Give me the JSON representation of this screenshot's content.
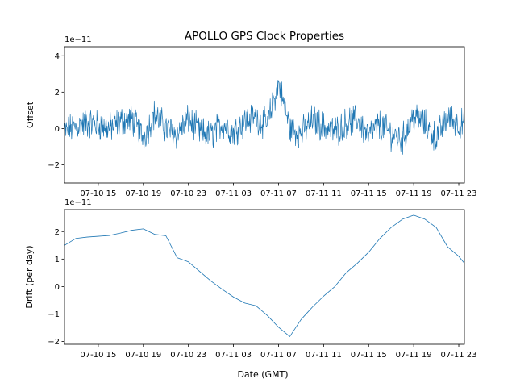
{
  "chart_data": [
    {
      "type": "line",
      "title": "APOLLO GPS Clock Properties",
      "xlabel": "",
      "ylabel": "Offset",
      "scale_label": "1e−11",
      "color": "#1f77b4",
      "ylim": [
        -3.0,
        4.5
      ],
      "yticks": [
        -2,
        0,
        2,
        4
      ],
      "xticks": [
        "07-10 15",
        "07-10 19",
        "07-10 23",
        "07-11 03",
        "07-11 07",
        "07-11 11",
        "07-11 15",
        "07-11 19",
        "07-11 23"
      ],
      "grid": false,
      "series": [
        {
          "x": [
            "07-10 12",
            "07-10 13",
            "07-10 14",
            "07-10 15",
            "07-10 16",
            "07-10 17",
            "07-10 18",
            "07-10 19",
            "07-10 20",
            "07-10 21",
            "07-10 22",
            "07-10 23",
            "07-11 00",
            "07-11 01",
            "07-11 02",
            "07-11 03",
            "07-11 04",
            "07-11 05",
            "07-11 06",
            "07-11 07",
            "07-11 08",
            "07-11 09",
            "07-11 10",
            "07-11 11",
            "07-11 12",
            "07-11 13",
            "07-11 14",
            "07-11 15",
            "07-11 16",
            "07-11 17",
            "07-11 18",
            "07-11 19",
            "07-11 20",
            "07-11 21",
            "07-11 22",
            "07-11 23",
            "07-11 23:30"
          ],
          "values": [
            -0.2,
            0.1,
            0.3,
            0.2,
            0.0,
            0.4,
            0.5,
            -0.5,
            0.8,
            0.0,
            -0.3,
            0.5,
            -0.2,
            -0.4,
            0.3,
            -0.2,
            0.4,
            0.6,
            0.2,
            2.5,
            0.0,
            -0.3,
            0.5,
            0.1,
            -0.2,
            0.3,
            0.5,
            -0.4,
            0.2,
            -0.3,
            -0.6,
            0.7,
            0.2,
            -0.5,
            0.6,
            0.3,
            0.2
          ]
        }
      ]
    },
    {
      "type": "line",
      "title": "",
      "xlabel": "Date (GMT)",
      "ylabel": "Drift (per day)",
      "scale_label": "1e−11",
      "color": "#1f77b4",
      "ylim": [
        -2.1,
        2.8
      ],
      "yticks": [
        -2,
        -1,
        0,
        1,
        2
      ],
      "xticks": [
        "07-10 15",
        "07-10 19",
        "07-10 23",
        "07-11 03",
        "07-11 07",
        "07-11 11",
        "07-11 15",
        "07-11 19",
        "07-11 23"
      ],
      "grid": false,
      "series": [
        {
          "x": [
            "07-10 12",
            "07-10 13",
            "07-10 14",
            "07-10 15",
            "07-10 16",
            "07-10 17",
            "07-10 18",
            "07-10 19",
            "07-10 20",
            "07-10 21",
            "07-10 22",
            "07-10 23",
            "07-11 00",
            "07-11 01",
            "07-11 02",
            "07-11 03",
            "07-11 04",
            "07-11 05",
            "07-11 06",
            "07-11 07",
            "07-11 08",
            "07-11 09",
            "07-11 10",
            "07-11 11",
            "07-11 12",
            "07-11 13",
            "07-11 14",
            "07-11 15",
            "07-11 16",
            "07-11 17",
            "07-11 18",
            "07-11 19",
            "07-11 20",
            "07-11 21",
            "07-11 22",
            "07-11 23",
            "07-11 23:30"
          ],
          "values": [
            1.5,
            1.75,
            1.8,
            1.83,
            1.86,
            1.95,
            2.05,
            2.1,
            1.9,
            1.85,
            1.05,
            0.9,
            0.55,
            0.2,
            -0.1,
            -0.38,
            -0.6,
            -0.7,
            -1.05,
            -1.48,
            -1.82,
            -1.2,
            -0.75,
            -0.35,
            0.0,
            0.5,
            0.85,
            1.25,
            1.75,
            2.15,
            2.45,
            2.6,
            2.45,
            2.15,
            1.45,
            1.1,
            0.85
          ]
        }
      ]
    }
  ]
}
